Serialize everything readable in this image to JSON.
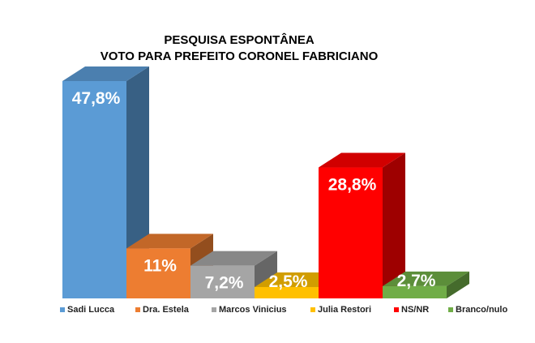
{
  "chart_data": {
    "type": "bar",
    "title_lines": [
      "PESQUISA ESPONTÂNEA",
      "VOTO PARA PREFEITO CORONEL FABRICIANO"
    ],
    "xlabel": "",
    "ylabel": "",
    "ylim": [
      0,
      50
    ],
    "three_d": true,
    "legend_position": "bottom",
    "grid": false,
    "series": [
      {
        "name": "Sadi Lucca",
        "value": 47.8,
        "label": "47,8%",
        "color": "#5b9bd5"
      },
      {
        "name": "Dra. Estela",
        "value": 11.0,
        "label": "11%",
        "color": "#ed7d31"
      },
      {
        "name": "Marcos Vinicius",
        "value": 7.2,
        "label": "7,2%",
        "color": "#a5a5a5"
      },
      {
        "name": "Julia Restori",
        "value": 2.5,
        "label": "2,5%",
        "color": "#ffc000"
      },
      {
        "name": "NS/NR",
        "value": 28.8,
        "label": "28,8%",
        "color": "#ff0000"
      },
      {
        "name": "Branco/nulo",
        "value": 2.7,
        "label": "2,7%",
        "color": "#70ad47"
      }
    ]
  }
}
